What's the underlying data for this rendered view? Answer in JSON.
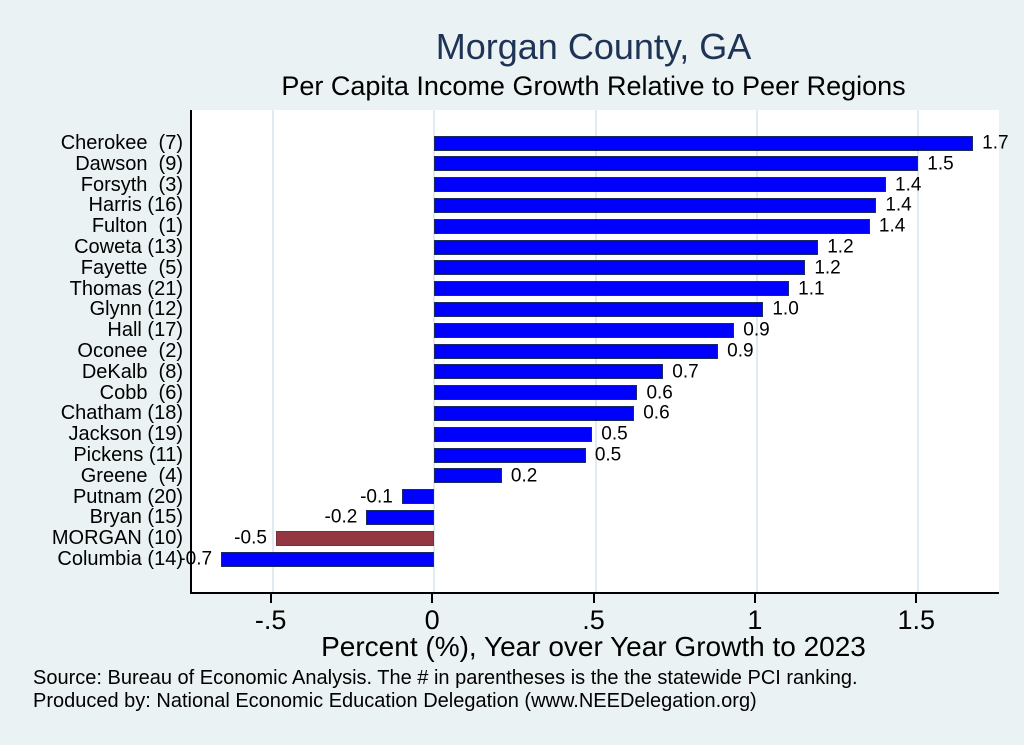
{
  "figure": {
    "footer_lines": [
      "Source: Bureau of Economic Analysis. The # in parentheses is the the statewide PCI ranking.",
      "Produced by: National Economic Education Delegation (www.NEEDelegation.org)"
    ]
  },
  "chart_data": {
    "type": "bar",
    "orientation": "horizontal",
    "title": "Morgan County, GA",
    "subtitle": "Per Capita Income Growth Relative to Peer Regions",
    "xlabel": "Percent (%), Year over Year Growth to 2023",
    "xlim": [
      -0.75,
      1.75
    ],
    "x_ticks": [
      -0.5,
      0,
      0.5,
      1,
      1.5
    ],
    "x_tick_labels": [
      "-.5",
      "0",
      ".5",
      "1",
      "1.5"
    ],
    "grid": "vertical gridlines at each x tick, white plot area on light blue background",
    "legend": "none",
    "bars": [
      {
        "category": "Cherokee  (7)",
        "label": "1.7",
        "value": 1.7,
        "length": 1.67,
        "highlight": false
      },
      {
        "category": "Dawson  (9)",
        "label": "1.5",
        "value": 1.5,
        "length": 1.5,
        "highlight": false
      },
      {
        "category": "Forsyth  (3)",
        "label": "1.4",
        "value": 1.4,
        "length": 1.4,
        "highlight": false
      },
      {
        "category": "Harris (16)",
        "label": "1.4",
        "value": 1.4,
        "length": 1.37,
        "highlight": false
      },
      {
        "category": "Fulton  (1)",
        "label": "1.4",
        "value": 1.4,
        "length": 1.35,
        "highlight": false
      },
      {
        "category": "Coweta (13)",
        "label": "1.2",
        "value": 1.2,
        "length": 1.19,
        "highlight": false
      },
      {
        "category": "Fayette  (5)",
        "label": "1.2",
        "value": 1.2,
        "length": 1.15,
        "highlight": false
      },
      {
        "category": "Thomas (21)",
        "label": "1.1",
        "value": 1.1,
        "length": 1.1,
        "highlight": false
      },
      {
        "category": "Glynn (12)",
        "label": "1.0",
        "value": 1.0,
        "length": 1.02,
        "highlight": false
      },
      {
        "category": "Hall (17)",
        "label": "0.9",
        "value": 0.9,
        "length": 0.93,
        "highlight": false
      },
      {
        "category": "Oconee  (2)",
        "label": "0.9",
        "value": 0.9,
        "length": 0.88,
        "highlight": false
      },
      {
        "category": "DeKalb  (8)",
        "label": "0.7",
        "value": 0.7,
        "length": 0.71,
        "highlight": false
      },
      {
        "category": "Cobb  (6)",
        "label": "0.6",
        "value": 0.6,
        "length": 0.63,
        "highlight": false
      },
      {
        "category": "Chatham (18)",
        "label": "0.6",
        "value": 0.6,
        "length": 0.62,
        "highlight": false
      },
      {
        "category": "Jackson (19)",
        "label": "0.5",
        "value": 0.5,
        "length": 0.49,
        "highlight": false
      },
      {
        "category": "Pickens (11)",
        "label": "0.5",
        "value": 0.5,
        "length": 0.47,
        "highlight": false
      },
      {
        "category": "Greene  (4)",
        "label": "0.2",
        "value": 0.2,
        "length": 0.21,
        "highlight": false
      },
      {
        "category": "Putnam (20)",
        "label": "-0.1",
        "value": -0.1,
        "length": -0.1,
        "highlight": false
      },
      {
        "category": "Bryan (15)",
        "label": "-0.2",
        "value": -0.2,
        "length": -0.21,
        "highlight": false
      },
      {
        "category": "MORGAN (10)",
        "label": "-0.5",
        "value": -0.5,
        "length": -0.49,
        "highlight": true
      },
      {
        "category": "Columbia (14)",
        "label": "-0.7",
        "value": -0.7,
        "length": -0.66,
        "highlight": false
      }
    ],
    "colors": {
      "background": "#eaf2f3",
      "plot_background": "#ffffff",
      "gridline": "#dfebf0",
      "axis": "#000000",
      "title": "#1e3356",
      "bar_fill": "#0000ff",
      "bar_border": "#1a2b5e",
      "highlight_fill": "#933742",
      "highlight_border": "#7a2f38"
    }
  }
}
